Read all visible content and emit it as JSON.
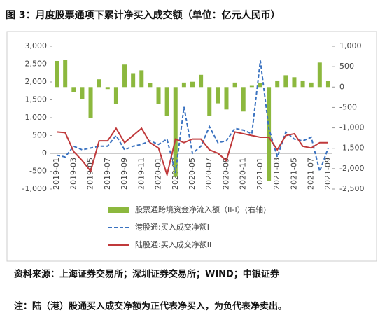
{
  "chart_data": {
    "type": "combo",
    "title": "图 3：月度股票通项下累计净买入成交额（单位：亿元人民币）",
    "categories": [
      "2019-01",
      null,
      "2019-03",
      null,
      "2019-05",
      null,
      "2019-07",
      null,
      "2019-09",
      null,
      "2019-11",
      null,
      "2020-01",
      null,
      "2020-03",
      null,
      "2020-05",
      null,
      "2020-07",
      null,
      "2020-09",
      null,
      "2020-11",
      null,
      "2021-01",
      null,
      "2021-03",
      null,
      "2021-05",
      null,
      "2021-07",
      null,
      "2021-09"
    ],
    "series": [
      {
        "name": "股票通跨境资金净流入额（II-I）(右轴)",
        "type": "bar",
        "axis": "y2",
        "color": "#8cb83e",
        "values": [
          640,
          670,
          -120,
          -300,
          -750,
          190,
          -50,
          -420,
          550,
          340,
          410,
          100,
          -420,
          -700,
          -2200,
          110,
          130,
          300,
          -700,
          -400,
          -550,
          110,
          -600,
          30,
          100,
          -2300,
          160,
          290,
          240,
          160,
          110,
          600,
          150
        ]
      },
      {
        "name": "港股通:买入成交净额I",
        "type": "line",
        "dash": true,
        "color": "#3a72c0",
        "values": [
          -50,
          -100,
          200,
          100,
          150,
          200,
          200,
          500,
          100,
          200,
          250,
          350,
          250,
          400,
          -550,
          1300,
          0,
          200,
          750,
          300,
          350,
          700,
          650,
          550,
          2600,
          700,
          -100,
          600,
          400,
          350,
          450,
          -500,
          150
        ]
      },
      {
        "name": "陆股通:买入成交净额II",
        "type": "line",
        "color": "#c0393b",
        "values": [
          600,
          580,
          50,
          -200,
          -500,
          350,
          350,
          700,
          300,
          500,
          700,
          300,
          150,
          -600,
          400,
          300,
          400,
          400,
          100,
          0,
          -200,
          600,
          550,
          500,
          450,
          450,
          100,
          500,
          550,
          200,
          150,
          300,
          300
        ]
      }
    ],
    "ylim": [
      -1000,
      3000
    ],
    "yticks": [
      {
        "value": -1000,
        "label": "-1,000"
      },
      -500,
      0,
      500,
      {
        "value": 1000,
        "label": "1,000"
      },
      {
        "value": 1500,
        "label": "1,500"
      },
      {
        "value": 2000,
        "label": "2,000"
      },
      {
        "value": 2500,
        "label": "2,500"
      },
      {
        "value": 3000,
        "label": "3,000"
      }
    ],
    "y2lim": [
      -2500,
      1000
    ],
    "y2ticks": [
      {
        "value": -2500,
        "label": "-2,500"
      },
      {
        "value": -2000,
        "label": "-2,000"
      },
      {
        "value": -1500,
        "label": "-1,500"
      },
      {
        "value": -1000,
        "label": "-1,000"
      },
      -500,
      0,
      500,
      {
        "value": 1000,
        "label": "1,000"
      }
    ],
    "source": "资料来源：上海证券交易所；深圳证券交易所；WIND；中银证券",
    "note": "注：陆（港）股通买入成交净额为正代表净买入，为负代表净卖出。"
  }
}
